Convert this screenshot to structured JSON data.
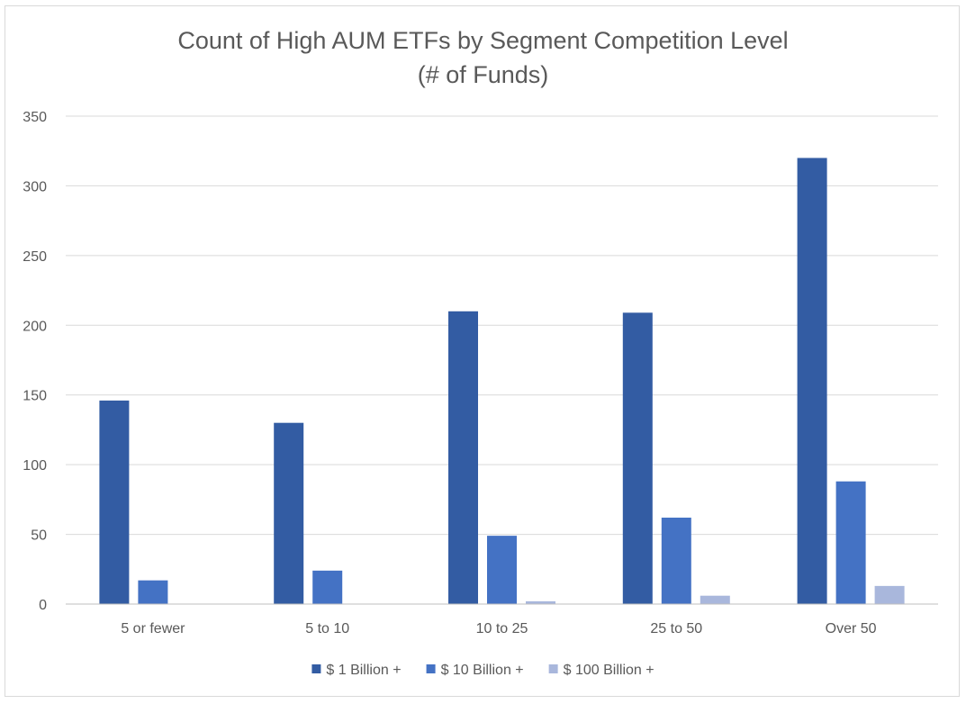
{
  "chart_data": {
    "type": "bar",
    "title": "Count of High AUM ETFs by Segment Competition Level",
    "subtitle": "(# of Funds)",
    "xlabel": "",
    "ylabel": "",
    "categories": [
      "5 or fewer",
      "5 to 10",
      "10 to 25",
      "25 to 50",
      "Over 50"
    ],
    "series": [
      {
        "name": "$ 1 Billion +",
        "values": [
          146,
          130,
          210,
          209,
          320
        ],
        "color": "#335ca3"
      },
      {
        "name": "$ 10 Billion +",
        "values": [
          17,
          24,
          49,
          62,
          88
        ],
        "color": "#4472c4"
      },
      {
        "name": "$ 100 Billion +",
        "values": [
          0,
          0,
          2,
          6,
          13
        ],
        "color": "#a9b7dc"
      }
    ],
    "ylim": [
      0,
      350
    ],
    "yticks": [
      0,
      50,
      100,
      150,
      200,
      250,
      300,
      350
    ],
    "grid": true,
    "legend_position": "bottom"
  }
}
